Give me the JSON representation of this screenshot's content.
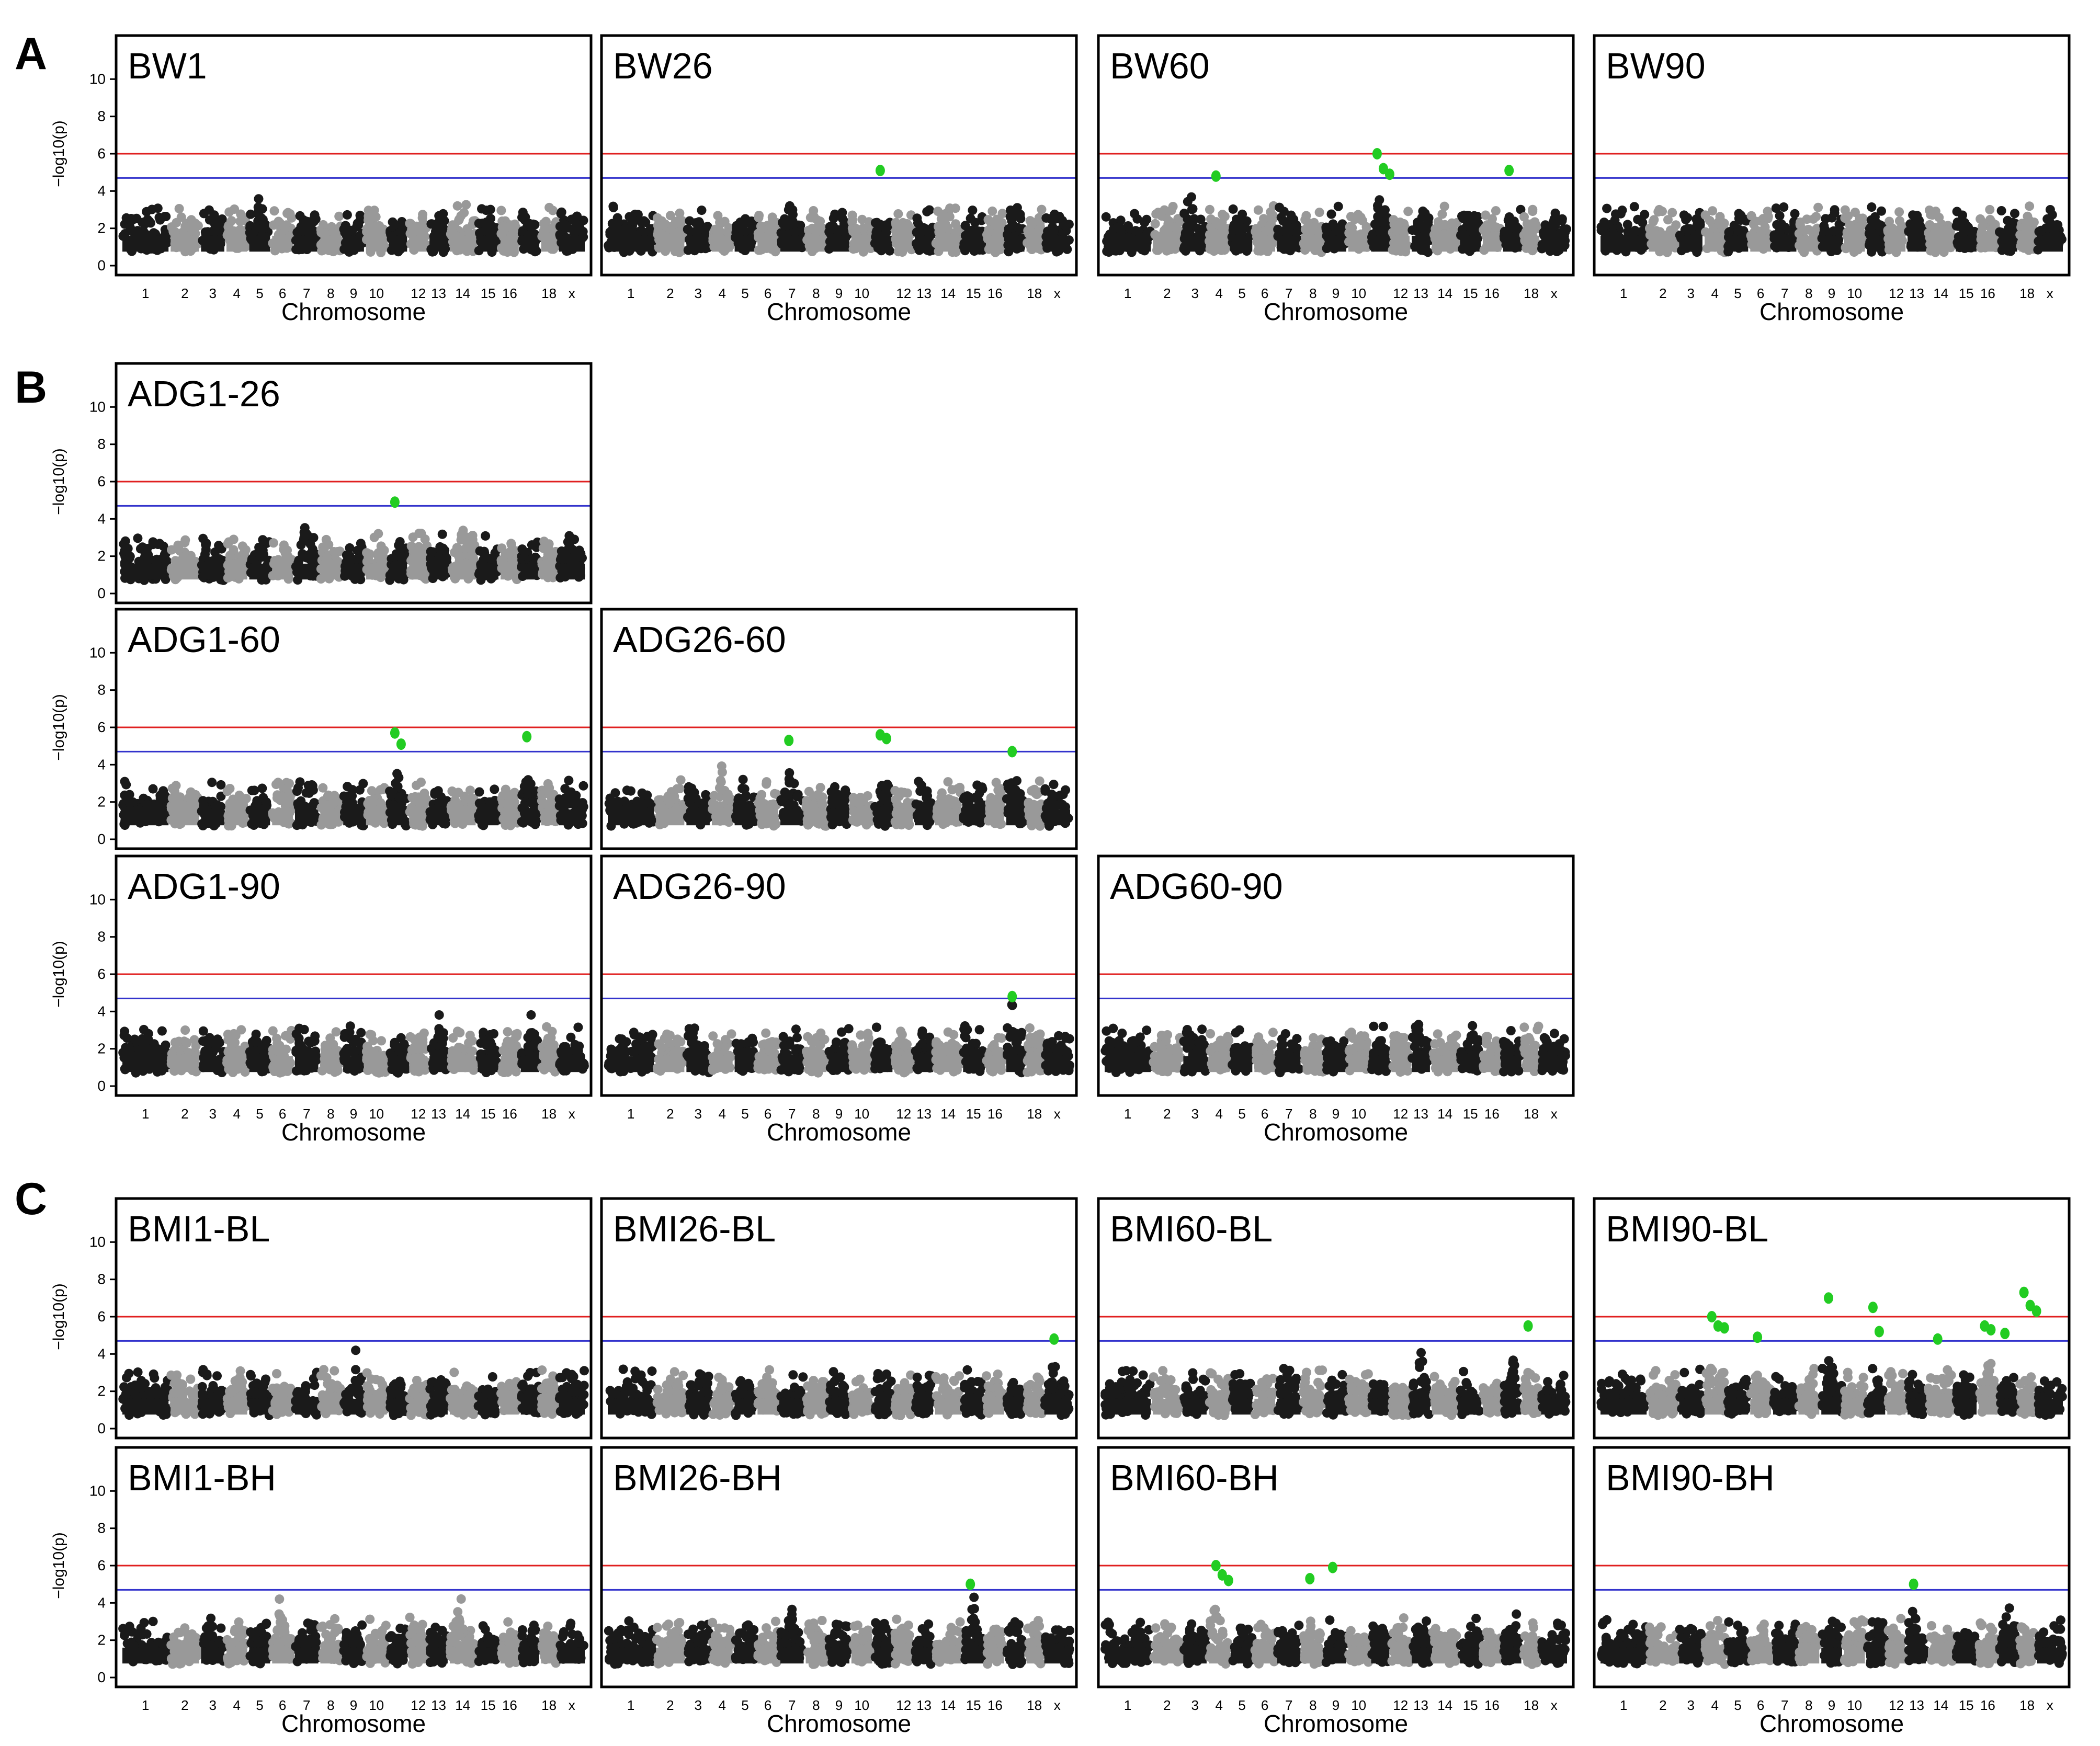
{
  "figure": {
    "panel_letters": [
      "A",
      "B",
      "C"
    ],
    "y_axis_label": "−log10(p)",
    "x_axis_label": "Chromosome",
    "y_ticks": [
      "0",
      "2",
      "4",
      "6",
      "8",
      "10"
    ],
    "chromosome_ticks": [
      "1",
      "2",
      "3",
      "4",
      "5",
      "6",
      "7",
      "8",
      "9",
      "10",
      "12",
      "13",
      "14",
      "15",
      "16",
      "18",
      "x"
    ],
    "colors": {
      "odd_chromosome": "#1a1a1a",
      "even_chromosome": "#999999",
      "significant_hit": "#22cc22",
      "significance_line": "#e02020",
      "suggestive_line": "#3333cc",
      "frame": "#000000"
    }
  },
  "chart_data": [
    {
      "type": "scatter",
      "subtype": "manhattan",
      "panel": "A",
      "title": "BW1",
      "xlabel": "Chromosome",
      "ylabel": "−log10(p)",
      "ylim": [
        0,
        12
      ],
      "thresholds": [
        6.0,
        4.7
      ],
      "peak_chromosomes": [
        "5"
      ],
      "max_value": 4.5,
      "hits": []
    },
    {
      "type": "scatter",
      "subtype": "manhattan",
      "panel": "A",
      "title": "BW26",
      "xlabel": "Chromosome",
      "ylabel": "−log10(p)",
      "ylim": [
        0,
        12
      ],
      "thresholds": [
        6.0,
        4.7
      ],
      "peak_chromosomes": [
        "7"
      ],
      "max_value": 4.2,
      "hits": [
        {
          "chromosome": "11",
          "value": 5.1
        }
      ]
    },
    {
      "type": "scatter",
      "subtype": "manhattan",
      "panel": "A",
      "title": "BW60",
      "xlabel": "Chromosome",
      "ylabel": "−log10(p)",
      "ylim": [
        0,
        12
      ],
      "thresholds": [
        6.0,
        4.7
      ],
      "peak_chromosomes": [
        "11",
        "3"
      ],
      "max_value": 4.5,
      "hits": [
        {
          "chromosome": "4",
          "value": 4.8
        },
        {
          "chromosome": "11",
          "value": 6.0
        },
        {
          "chromosome": "11",
          "value": 5.2
        },
        {
          "chromosome": "11",
          "value": 4.9
        },
        {
          "chromosome": "17",
          "value": 5.1
        }
      ]
    },
    {
      "type": "scatter",
      "subtype": "manhattan",
      "panel": "A",
      "title": "BW90",
      "xlabel": "Chromosome",
      "ylabel": "−log10(p)",
      "ylim": [
        0,
        12
      ],
      "thresholds": [
        6.0,
        4.7
      ],
      "peak_chromosomes": [
        "13"
      ],
      "max_value": 4.5,
      "hits": []
    },
    {
      "type": "scatter",
      "subtype": "manhattan",
      "panel": "B",
      "title": "ADG1-26",
      "xlabel": "",
      "ylabel": "−log10(p)",
      "ylim": [
        0,
        12
      ],
      "thresholds": [
        6.0,
        4.7
      ],
      "peak_chromosomes": [
        "7",
        "14"
      ],
      "max_value": 4.4,
      "hits": [
        {
          "chromosome": "11",
          "value": 4.9
        }
      ]
    },
    {
      "type": "scatter",
      "subtype": "manhattan",
      "panel": "B",
      "title": "ADG1-60",
      "xlabel": "",
      "ylabel": "−log10(p)",
      "ylim": [
        0,
        12
      ],
      "thresholds": [
        6.0,
        4.7
      ],
      "peak_chromosomes": [
        "11",
        "17"
      ],
      "max_value": 4.6,
      "hits": [
        {
          "chromosome": "11",
          "value": 5.7
        },
        {
          "chromosome": "11",
          "value": 5.1
        },
        {
          "chromosome": "17",
          "value": 5.5
        }
      ]
    },
    {
      "type": "scatter",
      "subtype": "manhattan",
      "panel": "B",
      "title": "ADG26-60",
      "xlabel": "",
      "ylabel": "−log10(p)",
      "ylim": [
        0,
        12
      ],
      "thresholds": [
        6.0,
        4.7
      ],
      "peak_chromosomes": [
        "4",
        "7"
      ],
      "max_value": 4.6,
      "hits": [
        {
          "chromosome": "7",
          "value": 5.3
        },
        {
          "chromosome": "11",
          "value": 5.6
        },
        {
          "chromosome": "11",
          "value": 5.4
        },
        {
          "chromosome": "17",
          "value": 4.7
        }
      ]
    },
    {
      "type": "scatter",
      "subtype": "manhattan",
      "panel": "B",
      "title": "ADG1-90",
      "xlabel": "Chromosome",
      "ylabel": "−log10(p)",
      "ylim": [
        0,
        12
      ],
      "thresholds": [
        6.0,
        4.7
      ],
      "peak_chromosomes": [
        "13",
        "17"
      ],
      "max_value": 4.4,
      "hits": []
    },
    {
      "type": "scatter",
      "subtype": "manhattan",
      "panel": "B",
      "title": "ADG26-90",
      "xlabel": "Chromosome",
      "ylabel": "−log10(p)",
      "ylim": [
        0,
        12
      ],
      "thresholds": [
        6.0,
        4.7
      ],
      "peak_chromosomes": [
        "13",
        "17"
      ],
      "max_value": 4.6,
      "hits": [
        {
          "chromosome": "17",
          "value": 4.8
        }
      ]
    },
    {
      "type": "scatter",
      "subtype": "manhattan",
      "panel": "B",
      "title": "ADG60-90",
      "xlabel": "Chromosome",
      "ylabel": "−log10(p)",
      "ylim": [
        0,
        12
      ],
      "thresholds": [
        6.0,
        4.7
      ],
      "peak_chromosomes": [
        "10",
        "13"
      ],
      "max_value": 4.3,
      "hits": []
    },
    {
      "type": "scatter",
      "subtype": "manhattan",
      "panel": "C",
      "title": "BMI1-BL",
      "xlabel": "",
      "ylabel": "−log10(p)",
      "ylim": [
        0,
        12
      ],
      "thresholds": [
        6.0,
        4.7
      ],
      "peak_chromosomes": [
        "4",
        "9"
      ],
      "max_value": 4.3,
      "hits": []
    },
    {
      "type": "scatter",
      "subtype": "manhattan",
      "panel": "C",
      "title": "BMI26-BL",
      "xlabel": "",
      "ylabel": "−log10(p)",
      "ylim": [
        0,
        12
      ],
      "thresholds": [
        6.0,
        4.7
      ],
      "peak_chromosomes": [
        "6",
        "x"
      ],
      "max_value": 4.4,
      "hits": [
        {
          "chromosome": "x",
          "value": 4.8
        }
      ]
    },
    {
      "type": "scatter",
      "subtype": "manhattan",
      "panel": "C",
      "title": "BMI60-BL",
      "xlabel": "",
      "ylabel": "−log10(p)",
      "ylim": [
        0,
        12
      ],
      "thresholds": [
        6.0,
        4.7
      ],
      "peak_chromosomes": [
        "13",
        "17"
      ],
      "max_value": 4.6,
      "hits": [
        {
          "chromosome": "18",
          "value": 5.5
        }
      ]
    },
    {
      "type": "scatter",
      "subtype": "manhattan",
      "panel": "C",
      "title": "BMI90-BL",
      "xlabel": "",
      "ylabel": "−log10(p)",
      "ylim": [
        0,
        12
      ],
      "thresholds": [
        6.0,
        4.7
      ],
      "peak_chromosomes": [
        "4",
        "9",
        "16"
      ],
      "max_value": 4.7,
      "hits": [
        {
          "chromosome": "4",
          "value": 6.0
        },
        {
          "chromosome": "4",
          "value": 5.5
        },
        {
          "chromosome": "4",
          "value": 5.4
        },
        {
          "chromosome": "6",
          "value": 4.9
        },
        {
          "chromosome": "9",
          "value": 7.0
        },
        {
          "chromosome": "11",
          "value": 6.5
        },
        {
          "chromosome": "11",
          "value": 5.2
        },
        {
          "chromosome": "14",
          "value": 4.8
        },
        {
          "chromosome": "16",
          "value": 5.5
        },
        {
          "chromosome": "16",
          "value": 5.3
        },
        {
          "chromosome": "17",
          "value": 5.1
        },
        {
          "chromosome": "18",
          "value": 7.3
        },
        {
          "chromosome": "18",
          "value": 6.6
        },
        {
          "chromosome": "18",
          "value": 6.3
        }
      ]
    },
    {
      "type": "scatter",
      "subtype": "manhattan",
      "panel": "C",
      "title": "BMI1-BH",
      "xlabel": "Chromosome",
      "ylabel": "−log10(p)",
      "ylim": [
        0,
        12
      ],
      "thresholds": [
        6.0,
        4.7
      ],
      "peak_chromosomes": [
        "6",
        "14"
      ],
      "max_value": 4.7,
      "hits": []
    },
    {
      "type": "scatter",
      "subtype": "manhattan",
      "panel": "C",
      "title": "BMI26-BH",
      "xlabel": "Chromosome",
      "ylabel": "−log10(p)",
      "ylim": [
        0,
        12
      ],
      "thresholds": [
        6.0,
        4.7
      ],
      "peak_chromosomes": [
        "7",
        "15"
      ],
      "max_value": 4.3,
      "hits": [
        {
          "chromosome": "15",
          "value": 5.0
        }
      ]
    },
    {
      "type": "scatter",
      "subtype": "manhattan",
      "panel": "C",
      "title": "BMI60-BH",
      "xlabel": "Chromosome",
      "ylabel": "−log10(p)",
      "ylim": [
        0,
        12
      ],
      "thresholds": [
        6.0,
        4.7
      ],
      "peak_chromosomes": [
        "4",
        "17"
      ],
      "max_value": 4.5,
      "hits": [
        {
          "chromosome": "4",
          "value": 6.0
        },
        {
          "chromosome": "4",
          "value": 5.5
        },
        {
          "chromosome": "4",
          "value": 5.2
        },
        {
          "chromosome": "8",
          "value": 5.3
        },
        {
          "chromosome": "9",
          "value": 5.9
        }
      ]
    },
    {
      "type": "scatter",
      "subtype": "manhattan",
      "panel": "C",
      "title": "BMI90-BH",
      "xlabel": "Chromosome",
      "ylabel": "−log10(p)",
      "ylim": [
        0,
        12
      ],
      "thresholds": [
        6.0,
        4.7
      ],
      "peak_chromosomes": [
        "13",
        "17"
      ],
      "max_value": 4.3,
      "hits": [
        {
          "chromosome": "13",
          "value": 5.0
        }
      ]
    }
  ]
}
